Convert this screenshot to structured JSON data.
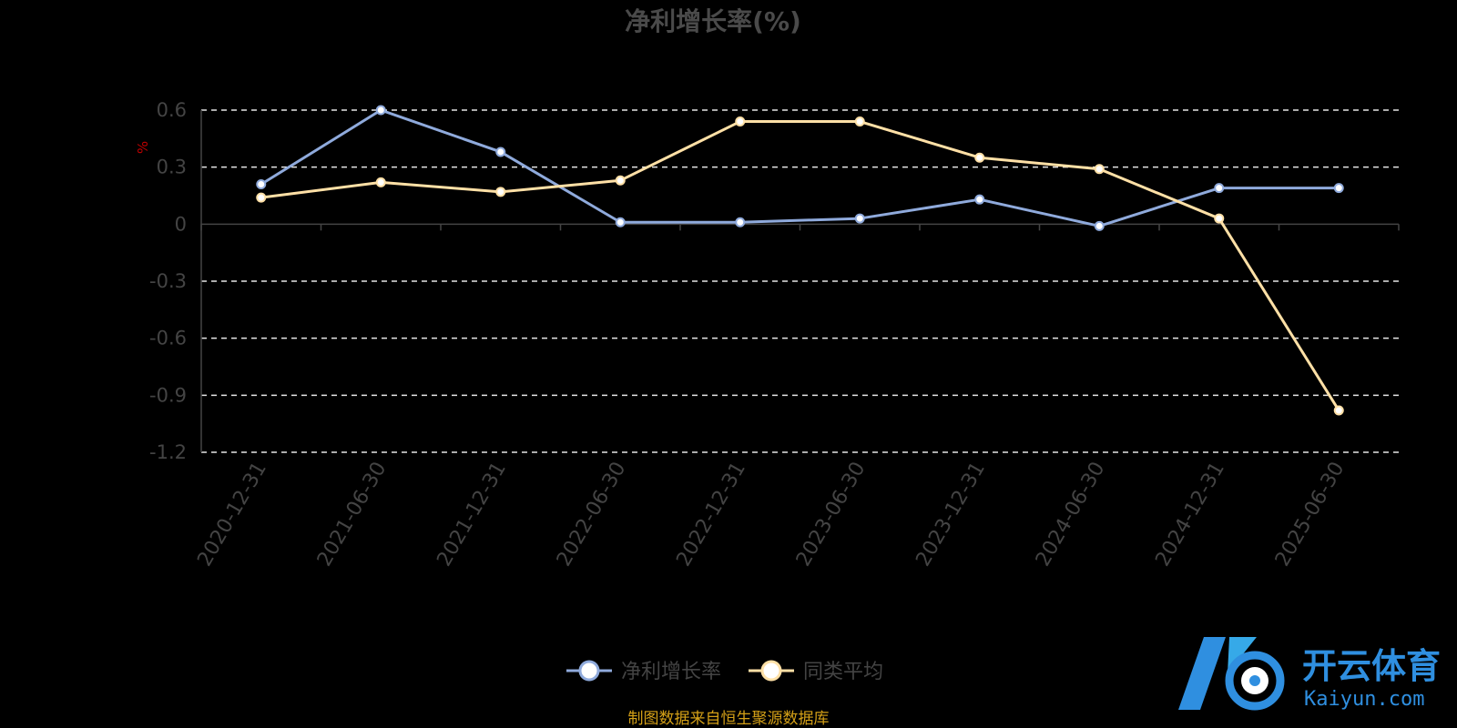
{
  "chart_data": {
    "type": "line",
    "title": "净利增长率(%)",
    "unit_label": "%",
    "ylim": [
      -1.2,
      0.6
    ],
    "yticks": [
      0.6,
      0.3,
      0,
      -0.3,
      -0.6,
      -0.9,
      -1.2
    ],
    "ytick_labels": [
      "0.6",
      "0.3",
      "0",
      "-0.3",
      "-0.6",
      "-0.9",
      "-1.2"
    ],
    "categories": [
      "2020-12-31",
      "2021-06-30",
      "2021-12-31",
      "2022-06-30",
      "2022-12-31",
      "2023-06-30",
      "2023-12-31",
      "2024-06-30",
      "2024-12-31",
      "2025-06-30"
    ],
    "grid": true,
    "legend_position": "bottom-center",
    "series": [
      {
        "name": "净利增长率",
        "color": "#8faadc",
        "values": [
          0.21,
          0.6,
          0.38,
          0.01,
          0.01,
          0.03,
          0.13,
          -0.01,
          0.19,
          0.19
        ]
      },
      {
        "name": "同类平均",
        "color": "#ffe0a6",
        "values": [
          0.14,
          0.22,
          0.17,
          0.23,
          0.54,
          0.54,
          0.35,
          0.29,
          0.03,
          -0.98
        ]
      }
    ]
  },
  "source_text": "制图数据来自恒生聚源数据库",
  "watermark": {
    "cn": "开云体育",
    "en": "Kaiyun.com"
  }
}
